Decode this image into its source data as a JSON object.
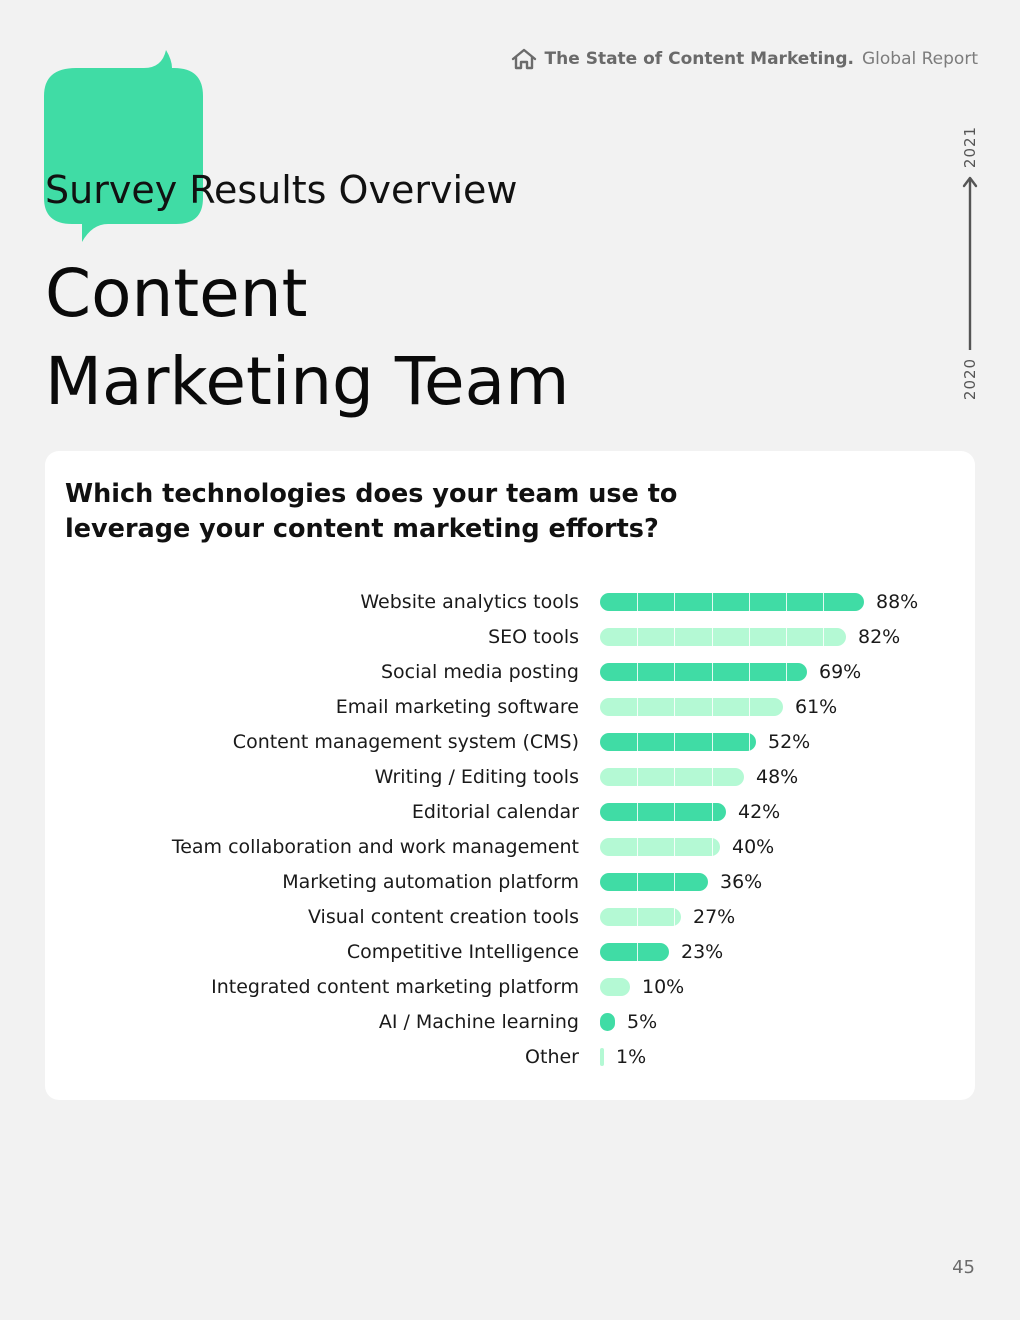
{
  "header": {
    "report_title_bold": "The State of Content Marketing.",
    "report_title_light": "Global Report",
    "home_icon": "home-icon"
  },
  "section_title": "Survey Results Overview",
  "main_title": {
    "line1": "Content",
    "line2": "Marketing Team"
  },
  "timeline": {
    "start_year": "2020",
    "end_year": "2021"
  },
  "colors": {
    "accent": "#40dca5",
    "accent_light": "#b4f9d4",
    "background": "#f2f2f2",
    "card": "#ffffff"
  },
  "page_number": "45",
  "chart_data": {
    "type": "bar",
    "orientation": "horizontal",
    "title": "Which technologies does your team use to leverage your content marketing efforts?",
    "title_lines": [
      "Which technologies does your team use to",
      "leverage your content marketing efforts?"
    ],
    "categories": [
      "Website analytics tools",
      "SEO tools",
      "Social media posting",
      "Email marketing software",
      "Content management system (CMS)",
      "Writing / Editing tools",
      "Editorial calendar",
      "Team collaboration and work management",
      "Marketing automation platform",
      "Visual content creation tools",
      "Competitive Intelligence",
      "Integrated content marketing platform",
      "AI / Machine learning",
      "Other"
    ],
    "values": [
      88,
      82,
      69,
      61,
      52,
      48,
      42,
      40,
      36,
      27,
      23,
      10,
      5,
      1
    ],
    "value_labels": [
      "88%",
      "82%",
      "69%",
      "61%",
      "52%",
      "48%",
      "42%",
      "40%",
      "36%",
      "27%",
      "23%",
      "10%",
      "5%",
      "1%"
    ],
    "unit": "%",
    "xlim": [
      0,
      100
    ],
    "grid": false,
    "legend": "none",
    "bar_colors_alternating": [
      "#40dca5",
      "#b4f9d4"
    ]
  }
}
